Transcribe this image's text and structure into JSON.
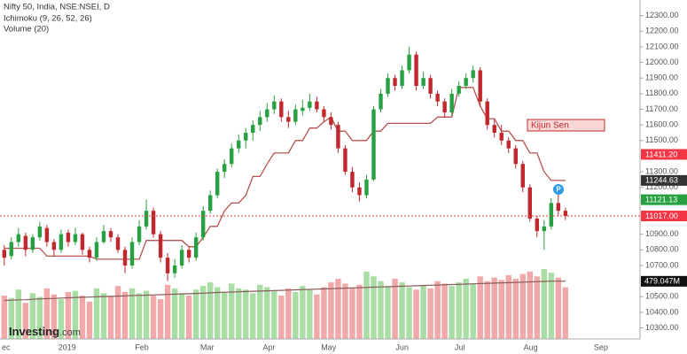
{
  "chart_data": {
    "type": "candlestick",
    "title": "Nifty 50, India, NSE:NSEI, D",
    "indicators": [
      "Ichimoku (9, 26, 52, 26)",
      "Volume (20)"
    ],
    "logo": [
      "Investing",
      ".com"
    ],
    "annotation": "Kijun Sen",
    "marker": "P",
    "xlim": [
      -0.6,
      89.5
    ],
    "xticks": [
      {
        "value": -0.35,
        "label": "ec"
      },
      {
        "value": 7.6,
        "label": "2019"
      },
      {
        "value": 18.4,
        "label": "Feb"
      },
      {
        "value": 27.6,
        "label": "Mar"
      },
      {
        "value": 36.4,
        "label": "Apr"
      },
      {
        "value": 44.6,
        "label": "May"
      },
      {
        "value": 55.1,
        "label": "Jun"
      },
      {
        "value": 63.4,
        "label": "Jul"
      },
      {
        "value": 73.1,
        "label": "Aug"
      },
      {
        "value": 83,
        "label": "Sep"
      }
    ],
    "ylim": [
      10150,
      12400
    ],
    "yticks": [
      {
        "value": 12300,
        "label": "12300.00"
      },
      {
        "value": 12200,
        "label": "12200.00"
      },
      {
        "value": 12100,
        "label": "12100.00"
      },
      {
        "value": 12000,
        "label": "12000.00"
      },
      {
        "value": 11900,
        "label": "11900.00"
      },
      {
        "value": 11800,
        "label": "11800.00"
      },
      {
        "value": 11700,
        "label": "11700.00"
      },
      {
        "value": 11600,
        "label": "11600.00"
      },
      {
        "value": 11500,
        "label": "11500.00"
      },
      {
        "value": 11300,
        "label": "11300.00"
      },
      {
        "value": 11200,
        "label": "11200.00"
      },
      {
        "value": 10900,
        "label": "10900.00"
      },
      {
        "value": 10800,
        "label": "10800.00"
      },
      {
        "value": 10700,
        "label": "10700.00"
      },
      {
        "value": 10500,
        "label": "10500.00"
      },
      {
        "value": 10400,
        "label": "10400.00"
      },
      {
        "value": 10300,
        "label": "10300.00"
      }
    ],
    "up_color": "#26a041",
    "down_color": "#c0282d",
    "vol_up_color": "#a8dea3",
    "vol_down_color": "#f0a8a8",
    "candles": [
      [
        10800,
        10830,
        10700,
        10750
      ],
      [
        10760,
        10880,
        10740,
        10850
      ],
      [
        10850,
        10940,
        10820,
        10900
      ],
      [
        10890,
        10910,
        10760,
        10800
      ],
      [
        10800,
        10900,
        10780,
        10880
      ],
      [
        10880,
        10980,
        10860,
        10950
      ],
      [
        10940,
        10960,
        10820,
        10850
      ],
      [
        10850,
        10870,
        10760,
        10800
      ],
      [
        10800,
        10930,
        10780,
        10900
      ],
      [
        10910,
        10930,
        10820,
        10850
      ],
      [
        10850,
        10940,
        10830,
        10900
      ],
      [
        10900,
        10910,
        10770,
        10800
      ],
      [
        10800,
        10820,
        10720,
        10750
      ],
      [
        10750,
        10880,
        10730,
        10850
      ],
      [
        10850,
        10960,
        10840,
        10920
      ],
      [
        10920,
        10940,
        10850,
        10880
      ],
      [
        10880,
        10900,
        10780,
        10800
      ],
      [
        10800,
        10820,
        10650,
        10700
      ],
      [
        10700,
        10880,
        10680,
        10850
      ],
      [
        10850,
        10990,
        10830,
        10950
      ],
      [
        10950,
        11120,
        10930,
        11050
      ],
      [
        11050,
        11070,
        10880,
        10900
      ],
      [
        10900,
        10920,
        10720,
        10750
      ],
      [
        10750,
        10780,
        10600,
        10650
      ],
      [
        10650,
        10740,
        10620,
        10700
      ],
      [
        10700,
        10830,
        10680,
        10800
      ],
      [
        10800,
        10820,
        10720,
        10750
      ],
      [
        10750,
        10910,
        10730,
        10880
      ],
      [
        10880,
        11080,
        10860,
        11050
      ],
      [
        11050,
        11180,
        11030,
        11150
      ],
      [
        11150,
        11320,
        11130,
        11300
      ],
      [
        11300,
        11380,
        11260,
        11350
      ],
      [
        11350,
        11480,
        11330,
        11450
      ],
      [
        11450,
        11540,
        11420,
        11500
      ],
      [
        11500,
        11580,
        11450,
        11550
      ],
      [
        11550,
        11630,
        11500,
        11600
      ],
      [
        11600,
        11690,
        11560,
        11650
      ],
      [
        11650,
        11740,
        11620,
        11700
      ],
      [
        11700,
        11790,
        11670,
        11750
      ],
      [
        11750,
        11770,
        11620,
        11650
      ],
      [
        11650,
        11690,
        11580,
        11620
      ],
      [
        11620,
        11730,
        11600,
        11700
      ],
      [
        11690,
        11760,
        11660,
        11710
      ],
      [
        11710,
        11800,
        11690,
        11750
      ],
      [
        11750,
        11780,
        11680,
        11700
      ],
      [
        11700,
        11720,
        11620,
        11650
      ],
      [
        11650,
        11680,
        11570,
        11600
      ],
      [
        11600,
        11620,
        11420,
        11450
      ],
      [
        11450,
        11470,
        11280,
        11300
      ],
      [
        11300,
        11330,
        11170,
        11200
      ],
      [
        11200,
        11230,
        11110,
        11150
      ],
      [
        11150,
        11280,
        11130,
        11250
      ],
      [
        11250,
        11720,
        11240,
        11700
      ],
      [
        11700,
        11830,
        11680,
        11800
      ],
      [
        11800,
        11930,
        11780,
        11900
      ],
      [
        11900,
        11920,
        11820,
        11850
      ],
      [
        11850,
        11980,
        11830,
        11950
      ],
      [
        11950,
        12100,
        11930,
        12050
      ],
      [
        12050,
        12070,
        11820,
        11850
      ],
      [
        11850,
        11940,
        11830,
        11900
      ],
      [
        11900,
        11920,
        11770,
        11800
      ],
      [
        11800,
        11820,
        11720,
        11750
      ],
      [
        11750,
        11770,
        11650,
        11680
      ],
      [
        11680,
        11830,
        11660,
        11800
      ],
      [
        11800,
        11880,
        11780,
        11850
      ],
      [
        11850,
        11930,
        11830,
        11900
      ],
      [
        11900,
        11980,
        11870,
        11950
      ],
      [
        11950,
        11970,
        11720,
        11750
      ],
      [
        11750,
        11770,
        11570,
        11600
      ],
      [
        11600,
        11640,
        11520,
        11550
      ],
      [
        11550,
        11600,
        11470,
        11500
      ],
      [
        11500,
        11520,
        11420,
        11450
      ],
      [
        11450,
        11470,
        11320,
        11350
      ],
      [
        11350,
        11370,
        11170,
        11200
      ],
      [
        11200,
        11220,
        10980,
        11000
      ],
      [
        11000,
        11020,
        10880,
        10920
      ],
      [
        10920,
        10990,
        10800,
        10950
      ],
      [
        10950,
        11130,
        10930,
        11100
      ],
      [
        11100,
        11180,
        11020,
        11050
      ],
      [
        11050,
        11070,
        10990,
        11017
      ]
    ],
    "kijun": [
      10810,
      10810,
      10810,
      10810,
      10810,
      10810,
      10760,
      10760,
      10760,
      10760,
      10760,
      10760,
      10760,
      10740,
      10740,
      10740,
      10740,
      10740,
      10740,
      10740,
      10860,
      10860,
      10860,
      10860,
      10860,
      10860,
      10820,
      10820,
      10880,
      10950,
      10950,
      11050,
      11100,
      11100,
      11150,
      11270,
      11270,
      11350,
      11420,
      11420,
      11420,
      11500,
      11500,
      11580,
      11580,
      11620,
      11650,
      11560,
      11560,
      11500,
      11500,
      11500,
      11560,
      11560,
      11610,
      11610,
      11610,
      11610,
      11610,
      11610,
      11610,
      11650,
      11650,
      11650,
      11840,
      11840,
      11840,
      11720,
      11640,
      11640,
      11560,
      11560,
      11500,
      11500,
      11420,
      11420,
      11300,
      11244.63,
      11244.63,
      11244.63
    ],
    "kijun_color": "#b5534f",
    "vlim": [
      0,
      1000
    ],
    "volume": [
      360,
      340,
      410,
      300,
      380,
      350,
      420,
      370,
      330,
      390,
      400,
      360,
      310,
      420,
      380,
      350,
      440,
      390,
      420,
      380,
      400,
      360,
      330,
      450,
      420,
      380,
      360,
      410,
      440,
      470,
      430,
      390,
      460,
      420,
      410,
      380,
      450,
      430,
      400,
      360,
      420,
      390,
      440,
      410,
      370,
      430,
      470,
      500,
      460,
      420,
      450,
      560,
      520,
      480,
      440,
      500,
      470,
      430,
      410,
      450,
      420,
      480,
      460,
      440,
      470,
      500,
      460,
      520,
      480,
      510,
      490,
      530,
      500,
      540,
      560,
      520,
      580,
      550,
      510,
      430
    ],
    "volume_ma": [
      320,
      322,
      325,
      326,
      330,
      332,
      335,
      337,
      340,
      342,
      345,
      346,
      348,
      350,
      352,
      354,
      356,
      358,
      360,
      362,
      364,
      366,
      368,
      370,
      372,
      374,
      376,
      378,
      380,
      383,
      386,
      388,
      390,
      392,
      394,
      396,
      398,
      400,
      402,
      404,
      406,
      408,
      410,
      412,
      414,
      416,
      418,
      420,
      422,
      424,
      426,
      428,
      430,
      432,
      434,
      436,
      438,
      440,
      442,
      444,
      446,
      448,
      450,
      452,
      454,
      456,
      458,
      460,
      462,
      464,
      466,
      468,
      470,
      472,
      474,
      476,
      478,
      480,
      480,
      479.047
    ],
    "volume_ma_color": "#8a5a5a",
    "price_labels": [
      {
        "value": 11411.2,
        "label": "11411.20",
        "color": "#f23645"
      },
      {
        "value": 11244.63,
        "label": "11244.63",
        "color": "#333333"
      },
      {
        "value": 11121.13,
        "label": "11121.13",
        "color": "#26a041"
      },
      {
        "value": 11017,
        "label": "11017.00",
        "color": "#f23645"
      }
    ],
    "volume_label": {
      "value": 479.047,
      "label": "479.047M",
      "color": "#111111"
    }
  }
}
